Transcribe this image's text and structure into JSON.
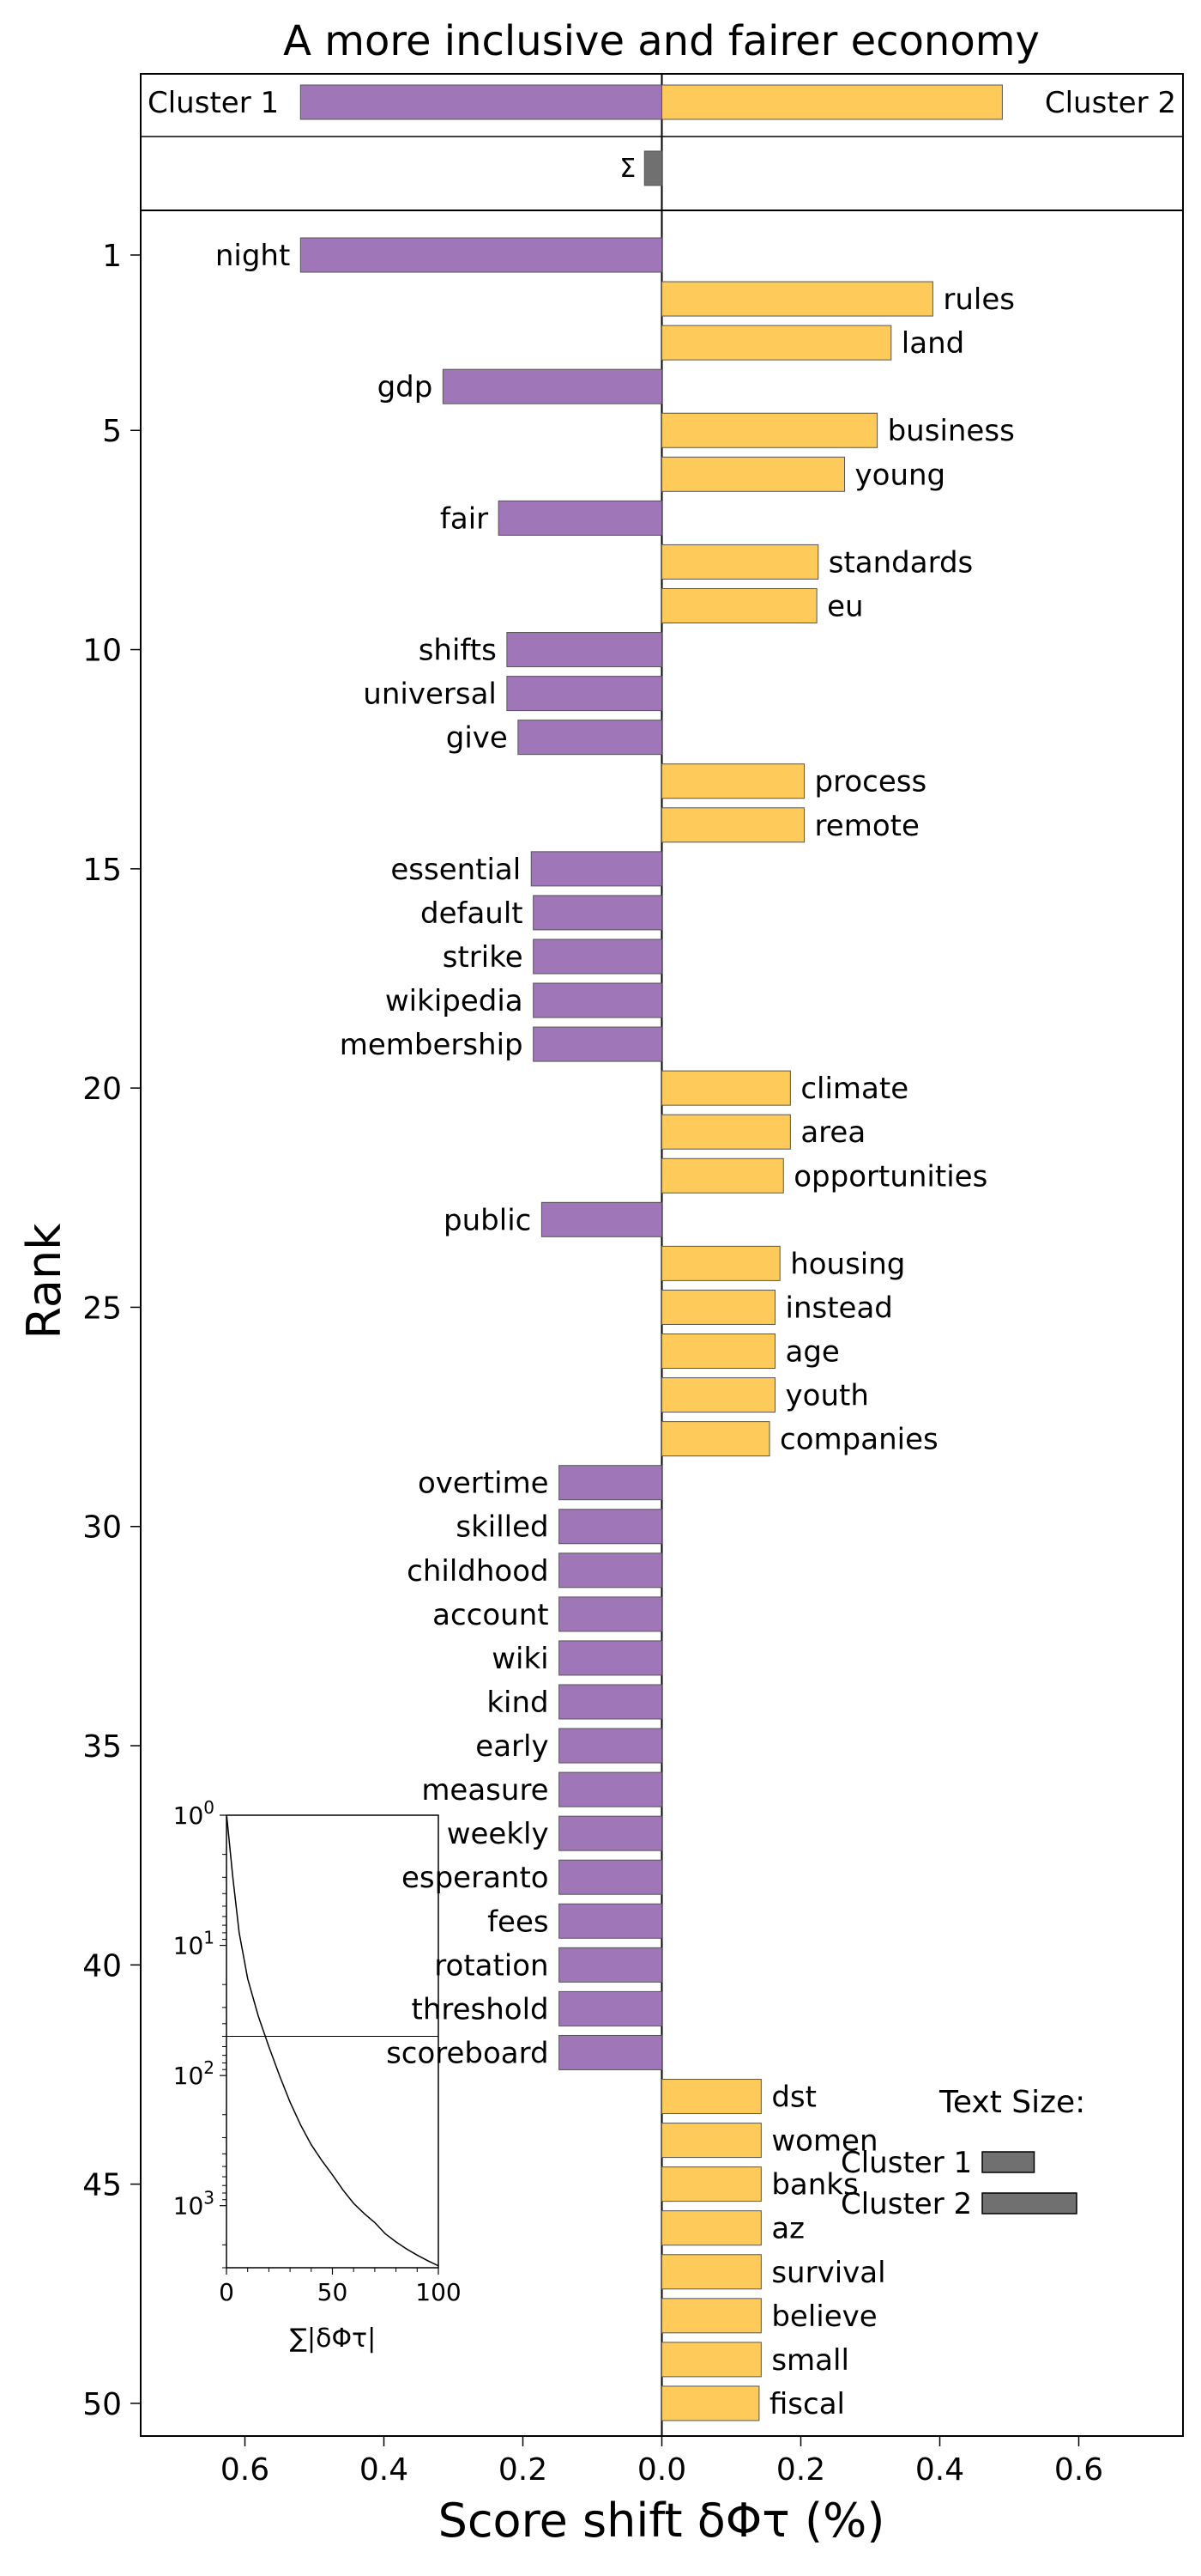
{
  "chart_data": {
    "type": "bar",
    "orientation": "horizontal",
    "title": "A more inclusive and fairer economy",
    "xlabel": "Score shift δΦτ (%)",
    "ylabel": "Rank",
    "xlim": [
      -0.75,
      0.75
    ],
    "xticks": [
      "0.6",
      "0.4",
      "0.2",
      "0.0",
      "0.2",
      "0.4",
      "0.6"
    ],
    "yticks": [
      "1",
      "5",
      "10",
      "15",
      "20",
      "25",
      "30",
      "35",
      "40",
      "45",
      "50"
    ],
    "colors": {
      "cluster1": "#9f76b7",
      "cluster2": "#fecb5b",
      "sum": "#707070"
    },
    "summary": {
      "cluster1_label": "Cluster 1",
      "cluster1_value": -0.52,
      "cluster2_label": "Cluster 2",
      "cluster2_value": 0.49,
      "sum_label": "Σ",
      "sum_value": -0.025
    },
    "words": [
      {
        "rank": 1,
        "word": "night",
        "value": -0.52
      },
      {
        "rank": 2,
        "word": "rules",
        "value": 0.39
      },
      {
        "rank": 3,
        "word": "land",
        "value": 0.33
      },
      {
        "rank": 4,
        "word": "gdp",
        "value": -0.315
      },
      {
        "rank": 5,
        "word": "business",
        "value": 0.31
      },
      {
        "rank": 6,
        "word": "young",
        "value": 0.263
      },
      {
        "rank": 7,
        "word": "fair",
        "value": -0.235
      },
      {
        "rank": 8,
        "word": "standards",
        "value": 0.225
      },
      {
        "rank": 9,
        "word": "eu",
        "value": 0.223
      },
      {
        "rank": 10,
        "word": "shifts",
        "value": -0.223
      },
      {
        "rank": 11,
        "word": "universal",
        "value": -0.223
      },
      {
        "rank": 12,
        "word": "give",
        "value": -0.207
      },
      {
        "rank": 13,
        "word": "process",
        "value": 0.205
      },
      {
        "rank": 14,
        "word": "remote",
        "value": 0.205
      },
      {
        "rank": 15,
        "word": "essential",
        "value": -0.188
      },
      {
        "rank": 16,
        "word": "default",
        "value": -0.185
      },
      {
        "rank": 17,
        "word": "strike",
        "value": -0.185
      },
      {
        "rank": 18,
        "word": "wikipedia",
        "value": -0.185
      },
      {
        "rank": 19,
        "word": "membership",
        "value": -0.185
      },
      {
        "rank": 20,
        "word": "climate",
        "value": 0.185
      },
      {
        "rank": 21,
        "word": "area",
        "value": 0.185
      },
      {
        "rank": 22,
        "word": "opportunities",
        "value": 0.175
      },
      {
        "rank": 23,
        "word": "public",
        "value": -0.173
      },
      {
        "rank": 24,
        "word": "housing",
        "value": 0.17
      },
      {
        "rank": 25,
        "word": "instead",
        "value": 0.163
      },
      {
        "rank": 26,
        "word": "age",
        "value": 0.163
      },
      {
        "rank": 27,
        "word": "youth",
        "value": 0.163
      },
      {
        "rank": 28,
        "word": "companies",
        "value": 0.155
      },
      {
        "rank": 29,
        "word": "overtime",
        "value": -0.148
      },
      {
        "rank": 30,
        "word": "skilled",
        "value": -0.148
      },
      {
        "rank": 31,
        "word": "childhood",
        "value": -0.148
      },
      {
        "rank": 32,
        "word": "account",
        "value": -0.148
      },
      {
        "rank": 33,
        "word": "wiki",
        "value": -0.148
      },
      {
        "rank": 34,
        "word": "kind",
        "value": -0.148
      },
      {
        "rank": 35,
        "word": "early",
        "value": -0.148
      },
      {
        "rank": 36,
        "word": "measure",
        "value": -0.148
      },
      {
        "rank": 37,
        "word": "weekly",
        "value": -0.148
      },
      {
        "rank": 38,
        "word": "esperanto",
        "value": -0.148
      },
      {
        "rank": 39,
        "word": "fees",
        "value": -0.148
      },
      {
        "rank": 40,
        "word": "rotation",
        "value": -0.148
      },
      {
        "rank": 41,
        "word": "threshold",
        "value": -0.148
      },
      {
        "rank": 42,
        "word": "scoreboard",
        "value": -0.148
      },
      {
        "rank": 43,
        "word": "dst",
        "value": 0.143
      },
      {
        "rank": 44,
        "word": "women",
        "value": 0.143
      },
      {
        "rank": 45,
        "word": "banks",
        "value": 0.143
      },
      {
        "rank": 46,
        "word": "az",
        "value": 0.143
      },
      {
        "rank": 47,
        "word": "survival",
        "value": 0.143
      },
      {
        "rank": 48,
        "word": "believe",
        "value": 0.143
      },
      {
        "rank": 49,
        "word": "small",
        "value": 0.143
      },
      {
        "rank": 50,
        "word": "fiscal",
        "value": 0.14
      }
    ],
    "inset": {
      "type": "line",
      "xlabel": "∑|δΦτ|",
      "xlim": [
        0,
        100
      ],
      "xticks": [
        "0",
        "50",
        "100"
      ],
      "ylog": true,
      "ylim": [
        1,
        3000
      ],
      "yticks": [
        {
          "base": "10",
          "exp": "0"
        },
        {
          "base": "10",
          "exp": "1"
        },
        {
          "base": "10",
          "exp": "2"
        },
        {
          "base": "10",
          "exp": "3"
        }
      ],
      "reference_rank": 50,
      "curve": [
        [
          0.1,
          1
        ],
        [
          3,
          3
        ],
        [
          6,
          8
        ],
        [
          10,
          18
        ],
        [
          15,
          35
        ],
        [
          20,
          60
        ],
        [
          25,
          100
        ],
        [
          30,
          160
        ],
        [
          35,
          240
        ],
        [
          40,
          340
        ],
        [
          45,
          450
        ],
        [
          50,
          580
        ],
        [
          55,
          760
        ],
        [
          60,
          960
        ],
        [
          65,
          1150
        ],
        [
          70,
          1350
        ],
        [
          75,
          1650
        ],
        [
          80,
          1900
        ],
        [
          85,
          2150
        ],
        [
          90,
          2400
        ],
        [
          95,
          2650
        ],
        [
          100,
          2900
        ]
      ]
    },
    "legend": {
      "title": "Text Size:",
      "entries": [
        {
          "label": "Cluster 1",
          "size": 0.55
        },
        {
          "label": "Cluster 2",
          "size": 1.0
        }
      ]
    }
  }
}
